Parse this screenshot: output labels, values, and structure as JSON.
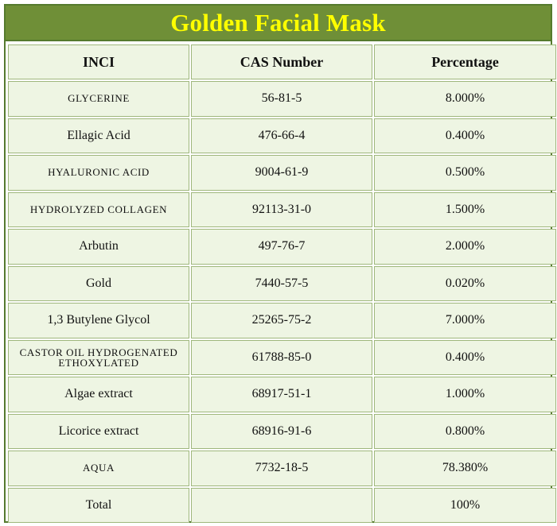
{
  "title": "Golden Facial Mask",
  "colors": {
    "title_bar": "#6f8f37",
    "title_text": "#ffff00",
    "cell_background": "#eef5e3",
    "border": "#557a2e"
  },
  "table": {
    "headers": [
      "INCI",
      "CAS Number",
      "Percentage"
    ],
    "rows": [
      {
        "inci": "GLYCERINE",
        "cas": "56-81-5",
        "percentage": "8.000%"
      },
      {
        "inci": "Ellagic Acid",
        "cas": "476-66-4",
        "percentage": "0.400%"
      },
      {
        "inci": "HYALURONIC ACID",
        "cas": "9004-61-9",
        "percentage": "0.500%"
      },
      {
        "inci": "HYDROLYZED COLLAGEN",
        "cas": "92113-31-0",
        "percentage": "1.500%"
      },
      {
        "inci": "Arbutin",
        "cas": "497-76-7",
        "percentage": "2.000%"
      },
      {
        "inci": "Gold",
        "cas": "7440-57-5",
        "percentage": "0.020%"
      },
      {
        "inci": "1,3 Butylene Glycol",
        "cas": "25265-75-2",
        "percentage": "7.000%"
      },
      {
        "inci": "CASTOR OIL HYDROGENATED ETHOXYLATED",
        "cas": "61788-85-0",
        "percentage": "0.400%"
      },
      {
        "inci": "Algae extract",
        "cas": "68917-51-1",
        "percentage": "1.000%"
      },
      {
        "inci": "Licorice extract",
        "cas": "68916-91-6",
        "percentage": "0.800%"
      },
      {
        "inci": "AQUA",
        "cas": "7732-18-5",
        "percentage": "78.380%"
      },
      {
        "inci": "Total",
        "cas": "",
        "percentage": "100%"
      }
    ]
  }
}
